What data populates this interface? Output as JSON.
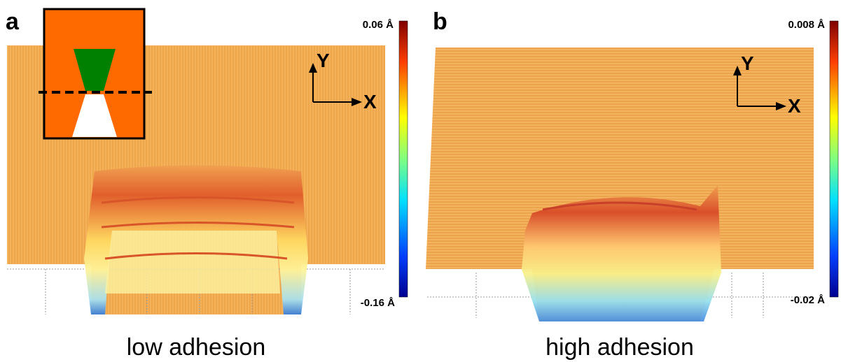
{
  "panels": [
    {
      "label": "a",
      "colorbar": {
        "max": "0.06 Å",
        "min": "-0.16 Å"
      },
      "axes": {
        "y": "Y",
        "x": "X"
      },
      "caption": "low adhesion"
    },
    {
      "label": "b",
      "colorbar": {
        "max": "0.008 Å",
        "min": "-0.02 Å"
      },
      "axes": {
        "y": "Y",
        "x": "X"
      },
      "caption": "high adhesion"
    }
  ]
}
